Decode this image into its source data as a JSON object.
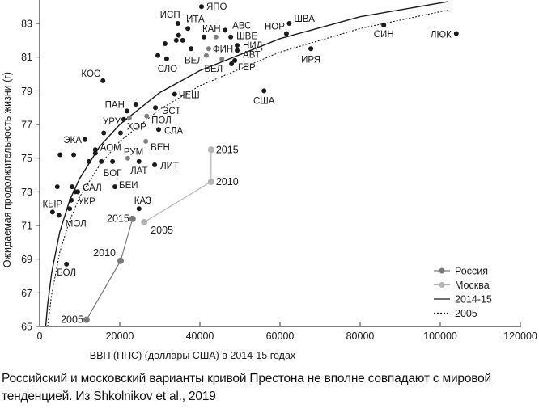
{
  "chart_data": {
    "type": "scatter",
    "xlabel": "ВВП (ППС) (доллары США) в 2014-15 годах",
    "ylabel": "Ожидаемая продолжительность жизни (г)",
    "xlim": [
      0,
      120000
    ],
    "ylim": [
      65,
      84.3
    ],
    "xticks": [
      "0",
      "20000",
      "40000",
      "60000",
      "80000",
      "100000",
      "120000"
    ],
    "yticks": [
      "65",
      "67",
      "69",
      "71",
      "73",
      "75",
      "77",
      "79",
      "81",
      "83"
    ],
    "grid": false,
    "legend_position": "bottom-right",
    "colors": {
      "country": "#1a1a1a",
      "highlight": "#808080",
      "russia": "#7a7a7a",
      "moscow": "#b4b4b4"
    },
    "countries": [
      {
        "label": "ЯПО",
        "x": 40400,
        "y": 84.0
      },
      {
        "label": "ИСП",
        "x": 34500,
        "y": 83.0
      },
      {
        "label": "ИТА",
        "x": 37000,
        "y": 82.7
      },
      {
        "label": "",
        "x": 34700,
        "y": 82.3
      },
      {
        "label": "",
        "x": 34100,
        "y": 82.0
      },
      {
        "label": "",
        "x": 35700,
        "y": 82.0
      },
      {
        "label": "",
        "x": 31300,
        "y": 81.8
      },
      {
        "label": "",
        "x": 37800,
        "y": 81.5
      },
      {
        "label": "",
        "x": 29500,
        "y": 81.1
      },
      {
        "label": "СЛО",
        "x": 31700,
        "y": 80.9
      },
      {
        "label": "КАН",
        "x": 41000,
        "y": 82.2
      },
      {
        "label": "АВС",
        "x": 46300,
        "y": 82.6
      },
      {
        "label": "",
        "x": 44000,
        "y": 82.2,
        "gray": true
      },
      {
        "label": "ШВЕ",
        "x": 47700,
        "y": 82.2
      },
      {
        "label": "НИД",
        "x": 49300,
        "y": 81.7
      },
      {
        "label": "АВТ",
        "x": 49300,
        "y": 81.4
      },
      {
        "label": "ФИН",
        "x": 42200,
        "y": 81.5,
        "gray": true
      },
      {
        "label": "ВЕЛ",
        "x": 41600,
        "y": 81.1,
        "gray": true
      },
      {
        "label": "БЕЛ",
        "x": 45500,
        "y": 80.9,
        "gray": true
      },
      {
        "label": "ГЕР",
        "x": 48700,
        "y": 80.8
      },
      {
        "label": "",
        "x": 47900,
        "y": 80.6
      },
      {
        "label": "КОС",
        "x": 15800,
        "y": 79.6
      },
      {
        "label": "ЧЕШ",
        "x": 33700,
        "y": 78.8
      },
      {
        "label": "ПАН",
        "x": 21800,
        "y": 77.8
      },
      {
        "label": "",
        "x": 24000,
        "y": 78.2
      },
      {
        "label": "УРУ",
        "x": 21000,
        "y": 77.3
      },
      {
        "label": "ХОР",
        "x": 22400,
        "y": 77.4,
        "gray": true
      },
      {
        "label": "ЭСТ",
        "x": 28900,
        "y": 78.0
      },
      {
        "label": "ПОЛ",
        "x": 26700,
        "y": 77.5,
        "gray": true
      },
      {
        "label": "СЛА",
        "x": 29700,
        "y": 76.7
      },
      {
        "label": "ЭКА",
        "x": 11300,
        "y": 76.1
      },
      {
        "label": "",
        "x": 16000,
        "y": 76.5
      },
      {
        "label": "",
        "x": 20200,
        "y": 76.5
      },
      {
        "label": "АОМ",
        "x": 13900,
        "y": 75.5
      },
      {
        "label": "",
        "x": 13900,
        "y": 75.3
      },
      {
        "label": "ВЕН",
        "x": 26500,
        "y": 76.0,
        "gray": true
      },
      {
        "label": "РУМ",
        "x": 22000,
        "y": 75.0,
        "gray": true
      },
      {
        "label": "",
        "x": 5100,
        "y": 75.2
      },
      {
        "label": "",
        "x": 8500,
        "y": 75.2
      },
      {
        "label": "",
        "x": 12300,
        "y": 74.8
      },
      {
        "label": "",
        "x": 15400,
        "y": 74.8
      },
      {
        "label": "БОГ",
        "x": 18200,
        "y": 74.8
      },
      {
        "label": "ЛАТ",
        "x": 24800,
        "y": 74.8
      },
      {
        "label": "ЛИТ",
        "x": 28700,
        "y": 74.6
      },
      {
        "label": "САЛ",
        "x": 8100,
        "y": 73.3
      },
      {
        "label": "",
        "x": 4400,
        "y": 73.3
      },
      {
        "label": "",
        "x": 8900,
        "y": 73.0
      },
      {
        "label": "",
        "x": 9500,
        "y": 73.0
      },
      {
        "label": "БЕИ",
        "x": 18800,
        "y": 73.3
      },
      {
        "label": "УКР",
        "x": 7900,
        "y": 72.5
      },
      {
        "label": "КЫР",
        "x": 3200,
        "y": 71.8
      },
      {
        "label": "",
        "x": 7500,
        "y": 72.0
      },
      {
        "label": "МОЛ",
        "x": 4800,
        "y": 71.6
      },
      {
        "label": "КАЗ",
        "x": 24800,
        "y": 72.0
      },
      {
        "label": "БОЛ",
        "x": 6700,
        "y": 68.7
      },
      {
        "label": "США",
        "x": 56000,
        "y": 79.0
      },
      {
        "label": "НОР",
        "x": 61600,
        "y": 82.4
      },
      {
        "label": "ШВА",
        "x": 62300,
        "y": 83.0
      },
      {
        "label": "ИРЯ",
        "x": 67700,
        "y": 81.5
      },
      {
        "label": "СИН",
        "x": 85900,
        "y": 82.9
      },
      {
        "label": "ЛЮК",
        "x": 104000,
        "y": 82.4
      }
    ],
    "series": [
      {
        "name": "Россия",
        "points": [
          {
            "label": "2005",
            "x": 11700,
            "y": 65.4
          },
          {
            "label": "2010",
            "x": 20200,
            "y": 68.9
          },
          {
            "label": "2015",
            "x": 23200,
            "y": 71.4
          }
        ]
      },
      {
        "name": "Москва",
        "points": [
          {
            "label": "2005",
            "x": 26100,
            "y": 71.2
          },
          {
            "label": "2010",
            "x": 42800,
            "y": 73.6
          },
          {
            "label": "2015",
            "x": 42800,
            "y": 75.5
          }
        ]
      }
    ],
    "curves": [
      {
        "name": "2014-15",
        "style": "solid",
        "x": [
          1500,
          2000,
          3000,
          5000,
          7500,
          10000,
          15000,
          20000,
          30000,
          40000,
          60000,
          80000,
          102000
        ],
        "y": [
          65,
          66.3,
          68.2,
          70.6,
          72.5,
          73.8,
          75.7,
          77.0,
          78.9,
          80.2,
          82.1,
          83.4,
          84.3
        ]
      },
      {
        "name": "2005",
        "style": "dotted",
        "x": [
          2000,
          3000,
          5000,
          7500,
          10000,
          15000,
          20000,
          30000,
          40000,
          60000,
          80000,
          102000
        ],
        "y": [
          65,
          66.9,
          69.4,
          71.3,
          72.7,
          74.6,
          76.0,
          77.9,
          79.3,
          81.3,
          82.7,
          83.8
        ]
      }
    ]
  },
  "caption": "Российский и московский варианты кривой Престона не вполне совпадают с мировой тенденцией. Из Shkolnikov et al., 2019"
}
